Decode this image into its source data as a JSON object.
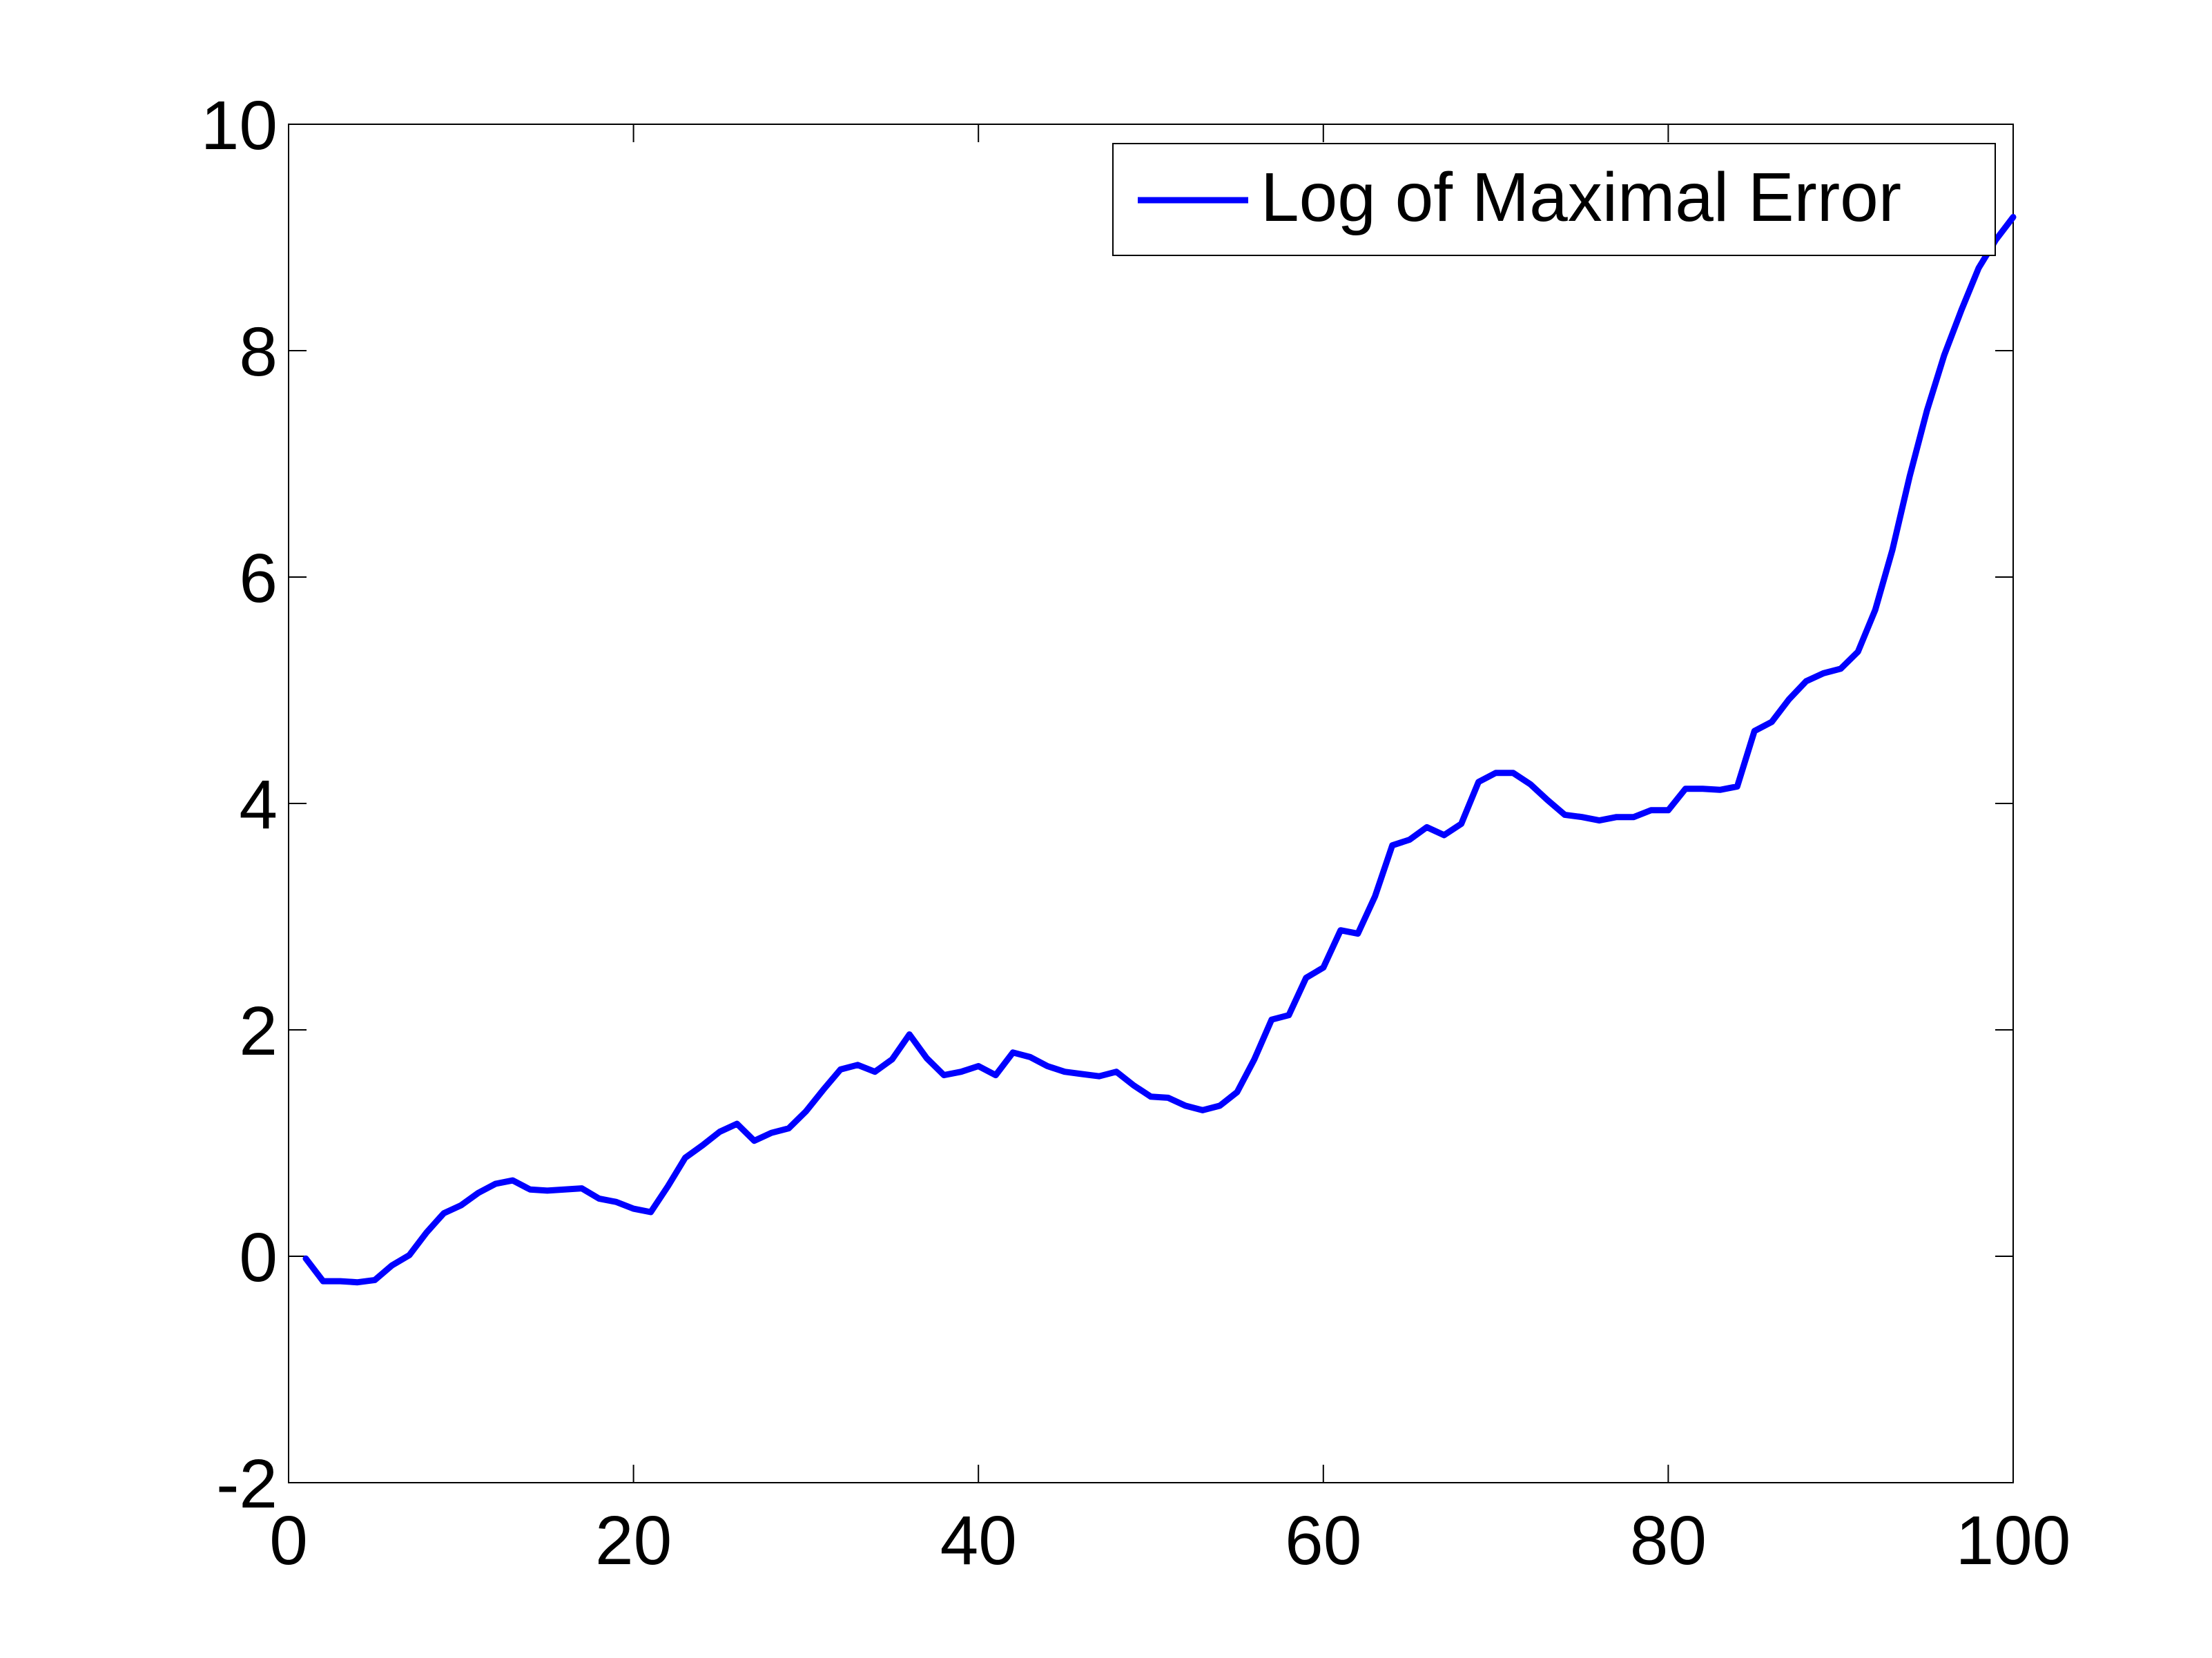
{
  "chart_data": {
    "type": "line",
    "title": "",
    "xlabel": "",
    "ylabel": "",
    "xlim": [
      0,
      100
    ],
    "ylim": [
      -2,
      10
    ],
    "xticks": [
      0,
      20,
      40,
      60,
      80,
      100
    ],
    "yticks": [
      -2,
      0,
      2,
      4,
      6,
      8,
      10
    ],
    "xtick_labels": [
      "0",
      "20",
      "40",
      "60",
      "80",
      "100"
    ],
    "ytick_labels": [
      "-2",
      "0",
      "2",
      "4",
      "6",
      "8",
      "10"
    ],
    "grid": false,
    "legend_position": "top-right",
    "series": [
      {
        "name": "Log of Maximal Error",
        "color": "#0000ff",
        "x": [
          1,
          2,
          3,
          4,
          5,
          6,
          7,
          8,
          9,
          10,
          11,
          12,
          13,
          14,
          15,
          16,
          17,
          18,
          19,
          20,
          21,
          22,
          23,
          24,
          25,
          26,
          27,
          28,
          29,
          30,
          31,
          32,
          33,
          34,
          35,
          36,
          37,
          38,
          39,
          40,
          41,
          42,
          43,
          44,
          45,
          46,
          47,
          48,
          49,
          50,
          51,
          52,
          53,
          54,
          55,
          56,
          57,
          58,
          59,
          60,
          61,
          62,
          63,
          64,
          65,
          66,
          67,
          68,
          69,
          70,
          71,
          72,
          73,
          74,
          75,
          76,
          77,
          78,
          79,
          80,
          81,
          82,
          83,
          84,
          85,
          86,
          87,
          88,
          89,
          90,
          91,
          92,
          93,
          94,
          95,
          96,
          97,
          98,
          99,
          100
        ],
        "values": [
          -0.02,
          -0.22,
          -0.22,
          -0.23,
          -0.21,
          -0.08,
          0.01,
          0.21,
          0.38,
          0.45,
          0.56,
          0.64,
          0.67,
          0.59,
          0.58,
          0.59,
          0.6,
          0.51,
          0.48,
          0.42,
          0.39,
          0.62,
          0.87,
          0.98,
          1.1,
          1.17,
          1.02,
          1.09,
          1.13,
          1.28,
          1.47,
          1.65,
          1.69,
          1.63,
          1.74,
          1.96,
          1.75,
          1.6,
          1.63,
          1.68,
          1.6,
          1.8,
          1.76,
          1.68,
          1.63,
          1.61,
          1.59,
          1.63,
          1.51,
          1.41,
          1.4,
          1.33,
          1.29,
          1.33,
          1.45,
          1.74,
          2.09,
          2.13,
          2.46,
          2.55,
          2.88,
          2.85,
          3.18,
          3.63,
          3.68,
          3.79,
          3.72,
          3.82,
          4.19,
          4.27,
          4.27,
          4.17,
          4.03,
          3.9,
          3.88,
          3.85,
          3.88,
          3.88,
          3.94,
          3.94,
          4.13,
          4.13,
          4.12,
          4.15,
          4.64,
          4.72,
          4.92,
          5.08,
          5.15,
          5.19,
          5.34,
          5.71,
          6.24,
          6.89,
          7.47,
          7.96,
          8.36,
          8.73,
          8.98,
          9.18
        ]
      }
    ]
  }
}
